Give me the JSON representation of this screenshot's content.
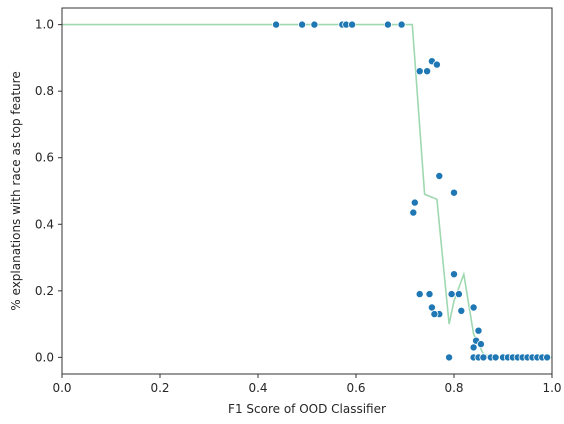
{
  "chart_data": {
    "type": "scatter",
    "xlabel": "F1 Score of OOD Classifier",
    "ylabel": "% explanations with race as top feature",
    "xlim": [
      0.0,
      1.0
    ],
    "ylim": [
      -0.05,
      1.05
    ],
    "xticks": [
      "0.0",
      "0.2",
      "0.4",
      "0.6",
      "0.8",
      "1.0"
    ],
    "yticks": [
      "0.0",
      "0.2",
      "0.4",
      "0.6",
      "0.8",
      "1.0"
    ],
    "grid": false,
    "colors": {
      "points": "#1f77b4",
      "line": "#9fd8b0",
      "axes": "#333333"
    },
    "series": [
      {
        "type": "scatter",
        "points": [
          [
            0.437,
            1.0
          ],
          [
            0.49,
            1.0
          ],
          [
            0.515,
            1.0
          ],
          [
            0.572,
            1.0
          ],
          [
            0.58,
            1.0
          ],
          [
            0.592,
            1.0
          ],
          [
            0.665,
            1.0
          ],
          [
            0.693,
            1.0
          ],
          [
            0.73,
            0.86
          ],
          [
            0.745,
            0.86
          ],
          [
            0.755,
            0.89
          ],
          [
            0.765,
            0.88
          ],
          [
            0.77,
            0.545
          ],
          [
            0.8,
            0.495
          ],
          [
            0.72,
            0.465
          ],
          [
            0.717,
            0.435
          ],
          [
            0.8,
            0.25
          ],
          [
            0.73,
            0.19
          ],
          [
            0.75,
            0.19
          ],
          [
            0.795,
            0.19
          ],
          [
            0.81,
            0.19
          ],
          [
            0.755,
            0.15
          ],
          [
            0.84,
            0.15
          ],
          [
            0.815,
            0.14
          ],
          [
            0.77,
            0.13
          ],
          [
            0.76,
            0.13
          ],
          [
            0.85,
            0.08
          ],
          [
            0.845,
            0.05
          ],
          [
            0.855,
            0.04
          ],
          [
            0.84,
            0.03
          ],
          [
            0.79,
            0.0
          ],
          [
            0.84,
            0.0
          ],
          [
            0.85,
            0.0
          ],
          [
            0.86,
            0.0
          ],
          [
            0.875,
            0.0
          ],
          [
            0.885,
            0.0
          ],
          [
            0.9,
            0.0
          ],
          [
            0.91,
            0.0
          ],
          [
            0.92,
            0.0
          ],
          [
            0.93,
            0.0
          ],
          [
            0.94,
            0.0
          ],
          [
            0.95,
            0.0
          ],
          [
            0.96,
            0.0
          ],
          [
            0.97,
            0.0
          ],
          [
            0.98,
            0.0
          ],
          [
            0.99,
            0.0
          ]
        ]
      },
      {
        "type": "line",
        "points": [
          [
            0.0,
            1.0
          ],
          [
            0.715,
            1.0
          ],
          [
            0.74,
            0.49
          ],
          [
            0.765,
            0.475
          ],
          [
            0.79,
            0.1
          ],
          [
            0.8,
            0.17
          ],
          [
            0.82,
            0.25
          ],
          [
            0.84,
            0.07
          ],
          [
            0.86,
            0.01
          ],
          [
            0.88,
            0.0
          ],
          [
            1.0,
            0.0
          ]
        ]
      }
    ]
  }
}
